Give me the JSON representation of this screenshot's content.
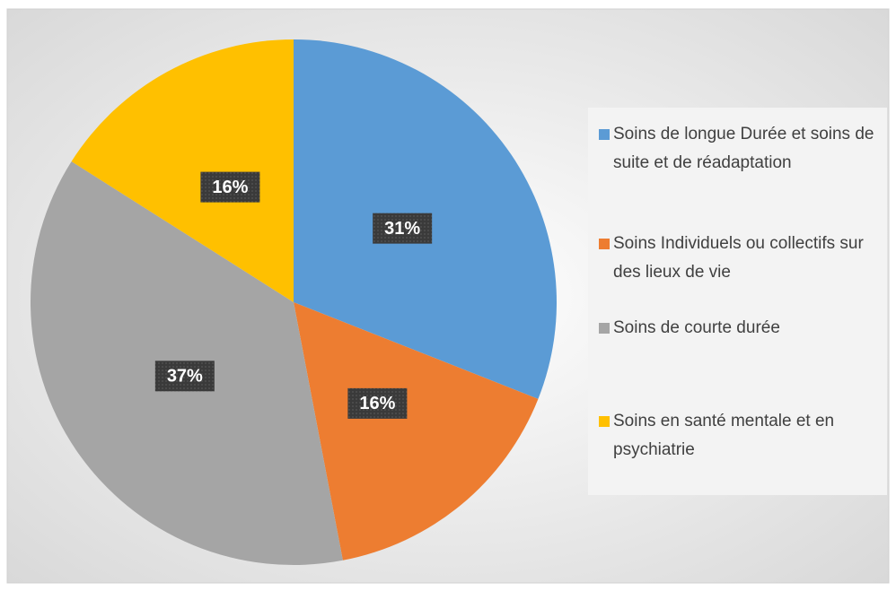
{
  "chart_data": {
    "type": "pie",
    "categories": [
      "Soins de longue Durée et soins de suite et de réadaptation",
      "Soins Individuels ou collectifs sur des lieux de vie",
      "Soins de courte durée",
      "Soins en santé mentale et en psychiatrie"
    ],
    "values": [
      31,
      16,
      37,
      16
    ],
    "value_labels": [
      "31%",
      "16%",
      "37%",
      "16%"
    ],
    "colors": [
      "#5b9bd5",
      "#ed7d31",
      "#a5a5a5",
      "#ffc000"
    ],
    "legend": "right"
  }
}
